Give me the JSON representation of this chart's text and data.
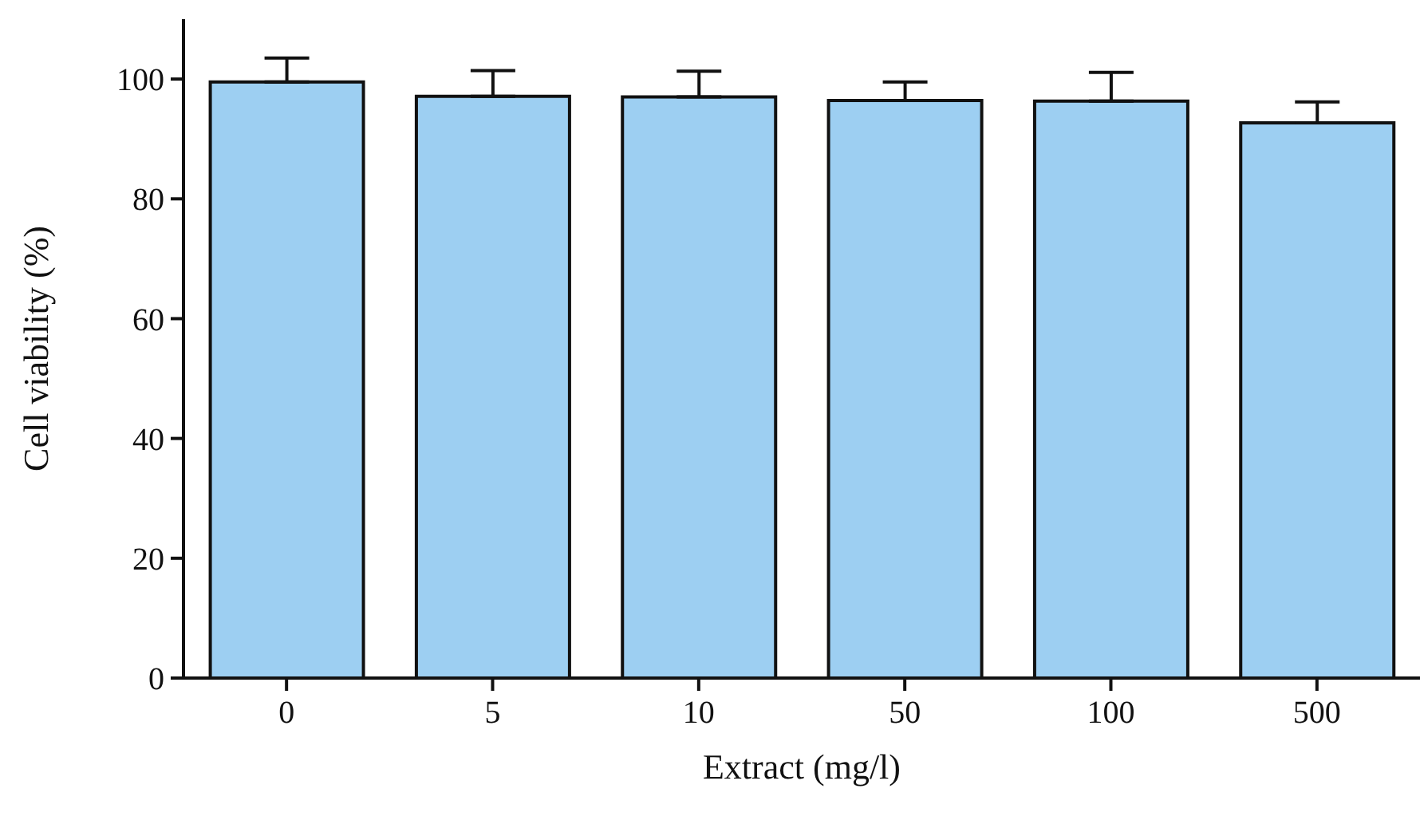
{
  "chart_data": {
    "type": "bar",
    "xlabel": "Extract (mg/l)",
    "ylabel": "Cell viability (%)",
    "categories": [
      "0",
      "5",
      "10",
      "50",
      "100",
      "500"
    ],
    "values": [
      99.5,
      97.1,
      97.0,
      96.4,
      96.3,
      92.7
    ],
    "errors": [
      [
        99.5,
        103.5
      ],
      [
        97.1,
        101.4
      ],
      [
        97.0,
        101.3
      ],
      [
        96.4,
        99.5
      ],
      [
        96.3,
        101.1
      ],
      [
        92.7,
        96.2
      ]
    ],
    "color": "#9dcff2",
    "ylim": [
      0,
      110
    ],
    "yticks": [
      0,
      20,
      40,
      60,
      80,
      100
    ],
    "grid": false,
    "legend": false
  }
}
